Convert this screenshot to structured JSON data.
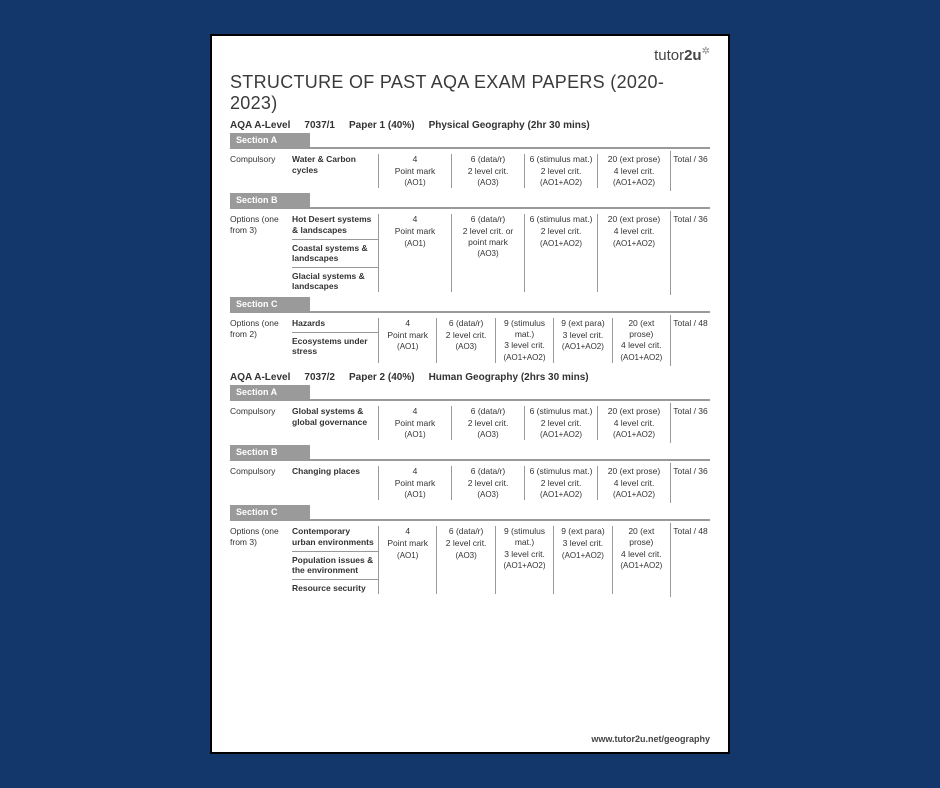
{
  "background_color": "#13376a",
  "page_bg": "#ffffff",
  "border_color": "#000000",
  "bar_color": "#9a9a9a",
  "text_color": "#333333",
  "logo": {
    "pre": "tutor",
    "bold": "2u"
  },
  "title": "STRUCTURE OF PAST AQA EXAM PAPERS (2020-2023)",
  "footer": "www.tutor2u.net/geography",
  "papers": [
    {
      "head": {
        "level": "AQA A-Level",
        "code": "7037/1",
        "paper": "Paper 1 (40%)",
        "subject": "Physical Geography (2hr 30 mins)"
      },
      "sections": [
        {
          "label": "Section A",
          "type": "Compulsory",
          "topics": [
            "Water & Carbon cycles"
          ],
          "cols": [
            {
              "l1": "4",
              "l2": "Point mark",
              "ao": "(AO1)"
            },
            {
              "l1": "6 (data/r)",
              "l2": "2 level crit.",
              "ao": "(AO3)"
            },
            {
              "l1": "6 (stimulus mat.)",
              "l2": "2 level crit.",
              "ao": "(AO1+AO2)"
            },
            {
              "l1": "20 (ext prose)",
              "l2": "4 level crit.",
              "ao": "(AO1+AO2)"
            }
          ],
          "total": "Total / 36"
        },
        {
          "label": "Section B",
          "type": "Options (one from 3)",
          "topics": [
            "Hot Desert systems & landscapes",
            "Coastal systems & landscapes",
            "Glacial systems & landscapes"
          ],
          "cols": [
            {
              "l1": "4",
              "l2": "Point mark",
              "ao": "(AO1)"
            },
            {
              "l1": "6 (data/r)",
              "l2": "2 level crit. or point mark",
              "ao": "(AO3)"
            },
            {
              "l1": "6 (stimulus mat.)",
              "l2": "2 level crit.",
              "ao": "(AO1+AO2)"
            },
            {
              "l1": "20 (ext prose)",
              "l2": "4 level crit.",
              "ao": "(AO1+AO2)"
            }
          ],
          "total": "Total / 36"
        },
        {
          "label": "Section C",
          "type": "Options (one from 2)",
          "topics": [
            "Hazards",
            "Ecosystems under stress"
          ],
          "cols": [
            {
              "l1": "4",
              "l2": "Point mark",
              "ao": "(AO1)"
            },
            {
              "l1": "6 (data/r)",
              "l2": "2 level crit.",
              "ao": "(AO3)"
            },
            {
              "l1": "9 (stimulus mat.)",
              "l2": "3 level crit.",
              "ao": "(AO1+AO2)"
            },
            {
              "l1": "9 (ext para)",
              "l2": "3 level crit.",
              "ao": "(AO1+AO2)"
            },
            {
              "l1": "20 (ext prose)",
              "l2": "4 level crit.",
              "ao": "(AO1+AO2)"
            }
          ],
          "total": "Total / 48"
        }
      ]
    },
    {
      "head": {
        "level": "AQA A-Level",
        "code": "7037/2",
        "paper": "Paper 2 (40%)",
        "subject": "Human Geography (2hrs 30 mins)"
      },
      "sections": [
        {
          "label": "Section A",
          "type": "Compulsory",
          "topics": [
            "Global systems & global governance"
          ],
          "cols": [
            {
              "l1": "4",
              "l2": "Point mark",
              "ao": "(AO1)"
            },
            {
              "l1": "6 (data/r)",
              "l2": "2 level crit.",
              "ao": "(AO3)"
            },
            {
              "l1": "6 (stimulus mat.)",
              "l2": "2 level crit.",
              "ao": "(AO1+AO2)"
            },
            {
              "l1": "20 (ext prose)",
              "l2": "4 level crit.",
              "ao": "(AO1+AO2)"
            }
          ],
          "total": "Total / 36"
        },
        {
          "label": "Section B",
          "type": "Compulsory",
          "topics": [
            "Changing places"
          ],
          "cols": [
            {
              "l1": "4",
              "l2": "Point mark",
              "ao": "(AO1)"
            },
            {
              "l1": "6 (data/r)",
              "l2": "2 level crit.",
              "ao": "(AO3)"
            },
            {
              "l1": "6 (stimulus mat.)",
              "l2": "2 level crit.",
              "ao": "(AO1+AO2)"
            },
            {
              "l1": "20 (ext prose)",
              "l2": "4 level crit.",
              "ao": "(AO1+AO2)"
            }
          ],
          "total": "Total / 36"
        },
        {
          "label": "Section C",
          "type": "Options (one from 3)",
          "topics": [
            "Contemporary urban environments",
            "Population issues & the environment",
            "Resource security"
          ],
          "cols": [
            {
              "l1": "4",
              "l2": "Point mark",
              "ao": "(AO1)"
            },
            {
              "l1": "6 (data/r)",
              "l2": "2 level crit.",
              "ao": "(AO3)"
            },
            {
              "l1": "9 (stimulus mat.)",
              "l2": "3 level crit.",
              "ao": "(AO1+AO2)"
            },
            {
              "l1": "9 (ext para)",
              "l2": "3 level crit.",
              "ao": "(AO1+AO2)"
            },
            {
              "l1": "20 (ext prose)",
              "l2": "4 level crit.",
              "ao": "(AO1+AO2)"
            }
          ],
          "total": "Total / 48"
        }
      ]
    }
  ]
}
